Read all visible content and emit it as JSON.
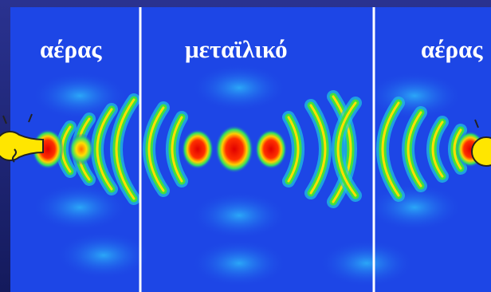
{
  "labels": {
    "left": "αέρας",
    "middle": "μεταϊλικό",
    "right": "αέρας"
  }
}
